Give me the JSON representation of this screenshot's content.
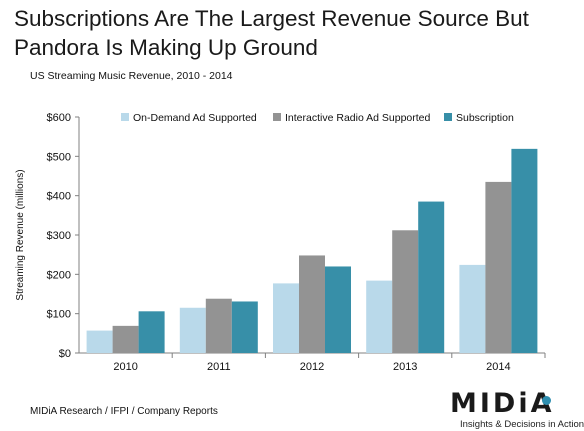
{
  "header": {
    "title": "Subscriptions Are The Largest Revenue Source But Pandora Is Making Up Ground",
    "subtitle": "US Streaming Music Revenue, 2010 - 2014"
  },
  "footer": {
    "source": "MIDiA Research / IFPI / Company Reports",
    "logo_text": "MIDiA",
    "logo_tagline": "Insights & Decisions in Action"
  },
  "colors": {
    "on_demand": "#b9d9ea",
    "interactive": "#939393",
    "subscription": "#378fa8"
  },
  "chart_data": {
    "type": "bar",
    "title": "US Streaming Music Revenue, 2010 - 2014",
    "ylabel": "Streaming Revenue (millions)",
    "xlabel": "",
    "categories": [
      "2010",
      "2011",
      "2012",
      "2013",
      "2014"
    ],
    "ylim": [
      0,
      600
    ],
    "yticks": [
      0,
      100,
      200,
      300,
      400,
      500,
      600
    ],
    "ytick_labels": [
      "$0",
      "$100",
      "$200",
      "$300",
      "$400",
      "$500",
      "$600"
    ],
    "legend_position": "top",
    "grid": false,
    "series": [
      {
        "name": "On-Demand Ad Supported",
        "values": [
          57,
          115,
          177,
          184,
          224
        ]
      },
      {
        "name": "Interactive Radio Ad Supported",
        "values": [
          69,
          138,
          248,
          312,
          435
        ]
      },
      {
        "name": "Subscription",
        "values": [
          106,
          131,
          220,
          385,
          519
        ]
      }
    ]
  }
}
